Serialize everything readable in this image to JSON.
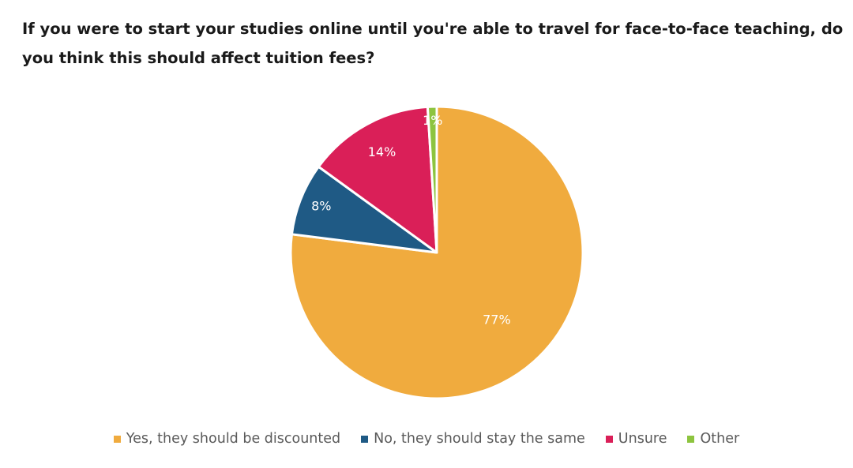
{
  "chart_data": {
    "type": "pie",
    "title": "If you were to start your studies online until you're able to travel for face-to-face teaching, do you think this should affect tuition fees?",
    "unit": "%",
    "slices": [
      {
        "label": "Yes, they should be discounted",
        "value": 77,
        "display": "77%",
        "color": "#F0AB3E"
      },
      {
        "label": "No, they should stay the same",
        "value": 8,
        "display": "8%",
        "color": "#1F5A85"
      },
      {
        "label": "Unsure",
        "value": 14,
        "display": "14%",
        "color": "#DA1F58"
      },
      {
        "label": "Other",
        "value": 1,
        "display": "1%",
        "color": "#8DC43F"
      }
    ],
    "start_angle": "12 o'clock",
    "direction": "clockwise",
    "legend_position": "bottom"
  }
}
